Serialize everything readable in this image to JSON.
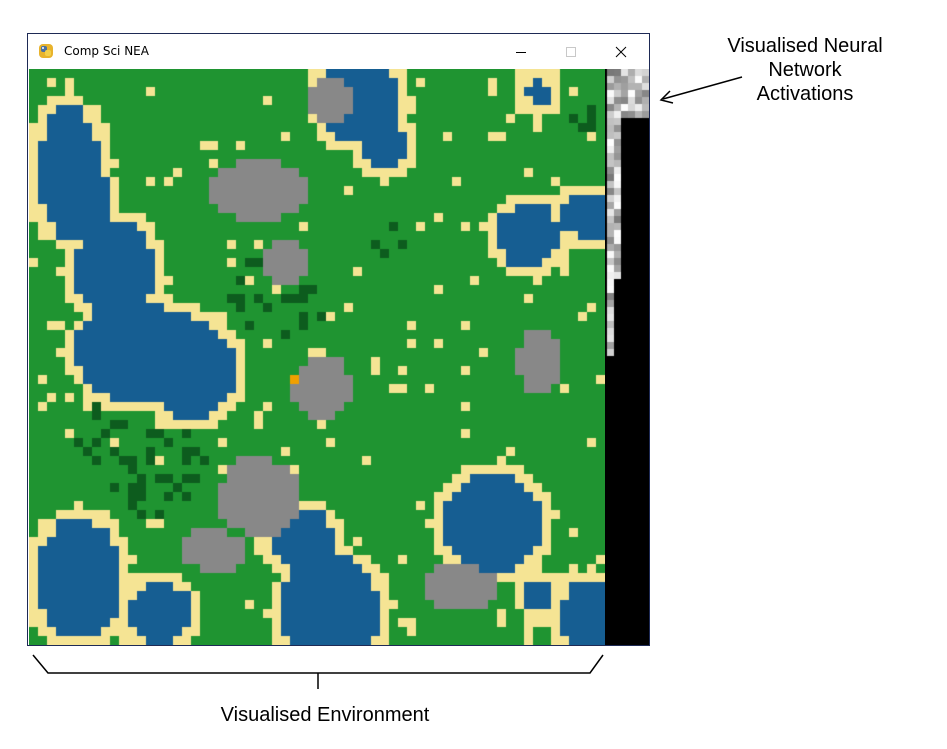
{
  "window": {
    "title": "Comp Sci NEA",
    "app_icon": "python-icon",
    "controls": {
      "minimize_icon": "minimize-icon",
      "maximize_icon": "maximize-icon",
      "close_icon": "close-icon"
    }
  },
  "annotations": {
    "network_line1": "Visualised Neural",
    "network_line2": "Network",
    "network_line3": "Activations",
    "environment": "Visualised Environment"
  },
  "colors": {
    "grass": "#1f9431",
    "water": "#165e92",
    "sand": "#f5e494",
    "rock": "#888888",
    "tree": "#0d5c1e",
    "agent": "#f0a000",
    "network_bg": "#000000"
  }
}
